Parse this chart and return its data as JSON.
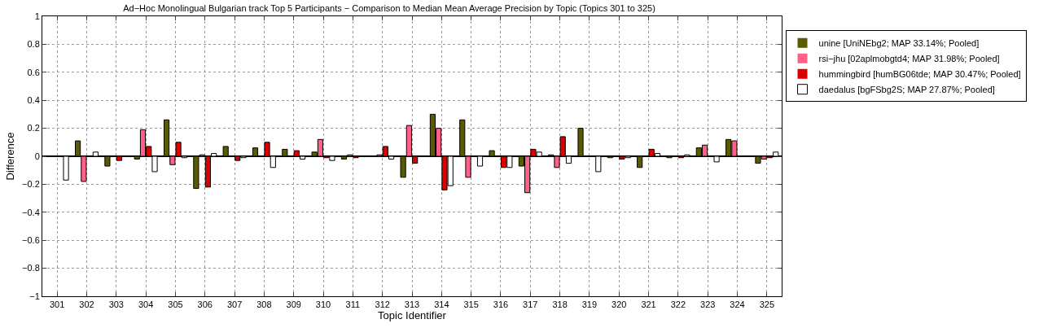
{
  "chart_data": {
    "type": "bar",
    "title": "Ad−Hoc Monolingual Bulgarian track Top 5 Participants − Comparison to Median Mean Average Precision by Topic (Topics 301 to 325)",
    "xlabel": "Topic Identifier",
    "ylabel": "Difference",
    "categories": [
      "301",
      "302",
      "303",
      "304",
      "305",
      "306",
      "307",
      "308",
      "309",
      "310",
      "311",
      "312",
      "313",
      "314",
      "315",
      "316",
      "317",
      "318",
      "319",
      "320",
      "321",
      "322",
      "323",
      "324",
      "325"
    ],
    "series": [
      {
        "name": "unine [UniNEbg2; MAP 33.14%; Pooled]",
        "color": "#5a5a00",
        "values": [
          0,
          0.11,
          -0.07,
          -0.02,
          0.26,
          -0.23,
          0.07,
          0.06,
          0.05,
          0.03,
          -0.02,
          0,
          -0.15,
          0.3,
          0.26,
          0.04,
          -0.07,
          0.01,
          0.2,
          -0.01,
          -0.08,
          -0.01,
          0.06,
          0.12,
          -0.05
        ]
      },
      {
        "name": "rsi−jhu [02aplmobgtd4; MAP 31.98%; Pooled]",
        "color": "#ff6088",
        "values": [
          0,
          -0.18,
          0,
          0.19,
          -0.06,
          0.01,
          0,
          0,
          0,
          0.12,
          0.01,
          0.01,
          0.22,
          0.2,
          -0.15,
          0,
          -0.26,
          -0.08,
          0,
          0,
          0,
          0,
          0.08,
          0.11,
          -0.02
        ]
      },
      {
        "name": "hummingbird [humBG06tde; MAP 30.47%; Pooled]",
        "color": "#dd0000",
        "values": [
          0,
          0,
          -0.03,
          0.07,
          0.1,
          -0.22,
          -0.03,
          0.1,
          0.04,
          -0.01,
          -0.01,
          0.07,
          -0.05,
          -0.24,
          0,
          -0.08,
          0.05,
          0.14,
          0,
          -0.02,
          0.05,
          -0.01,
          0,
          0,
          -0.01
        ]
      },
      {
        "name": "daedalus [bgFSbg2S; MAP 27.87%; Pooled]",
        "color": "#ffffff",
        "values": [
          -0.17,
          0.03,
          0,
          -0.11,
          -0.01,
          0.02,
          -0.01,
          -0.08,
          -0.02,
          -0.03,
          0,
          -0.02,
          0,
          -0.21,
          -0.07,
          -0.08,
          0.03,
          -0.05,
          -0.11,
          -0.01,
          0.02,
          0.01,
          -0.04,
          0,
          0.03
        ]
      }
    ],
    "ylim": [
      -1,
      1
    ],
    "yticks": [
      {
        "value": -1,
        "label": "−1"
      },
      {
        "value": -0.8,
        "label": "−0.8"
      },
      {
        "value": -0.6,
        "label": "−0.6"
      },
      {
        "value": -0.4,
        "label": "−0.4"
      },
      {
        "value": -0.2,
        "label": "−0.2"
      },
      0,
      0.2,
      0.4,
      0.6,
      0.8,
      1
    ],
    "grid": true,
    "legend": "top right"
  }
}
